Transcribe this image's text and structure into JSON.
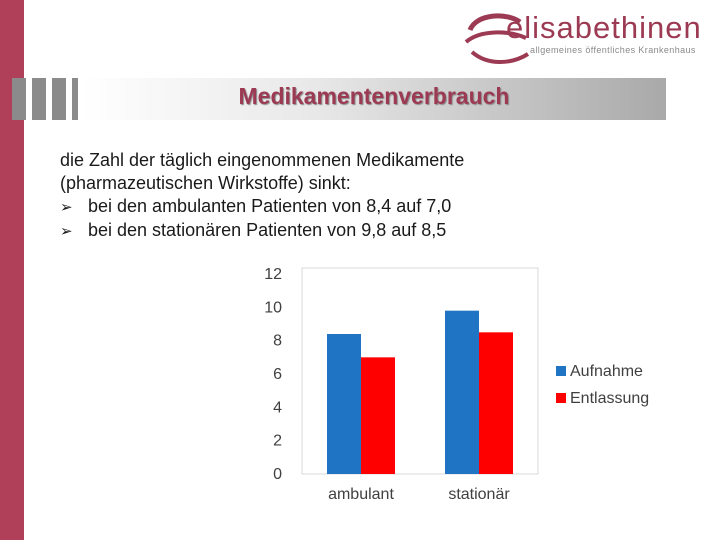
{
  "logo": {
    "name": "elisabethinen",
    "tagline": "allgemeines öffentliches Krankenhaus"
  },
  "slide": {
    "title": "Medikamentenverbrauch",
    "intro_lines": [
      "die Zahl der täglich eingenommenen Medikamente",
      "(pharmazeutischen Wirkstoffe) sinkt:"
    ],
    "bullets": [
      "bei den ambulanten Patienten von 8,4 auf 7,0",
      "bei den stationären Patienten von 9,8 auf 8,5"
    ]
  },
  "colors": {
    "accent": "#9c3a53",
    "stripe": "#b0405a",
    "series_aufnahme": "#1f74c4",
    "series_entlassung": "#ff0000"
  },
  "chart_data": {
    "type": "bar",
    "title": "",
    "xlabel": "",
    "ylabel": "",
    "categories": [
      "ambulant",
      "stationär"
    ],
    "series": [
      {
        "name": "Aufnahme",
        "values": [
          8.4,
          9.8
        ],
        "color": "#1f74c4"
      },
      {
        "name": "Entlassung",
        "values": [
          7.0,
          8.5
        ],
        "color": "#ff0000"
      }
    ],
    "ylim": [
      0,
      12
    ],
    "yticks": [
      "0",
      "2",
      "4",
      "6",
      "8",
      "10",
      "12"
    ],
    "grid": false,
    "legend": "right"
  }
}
